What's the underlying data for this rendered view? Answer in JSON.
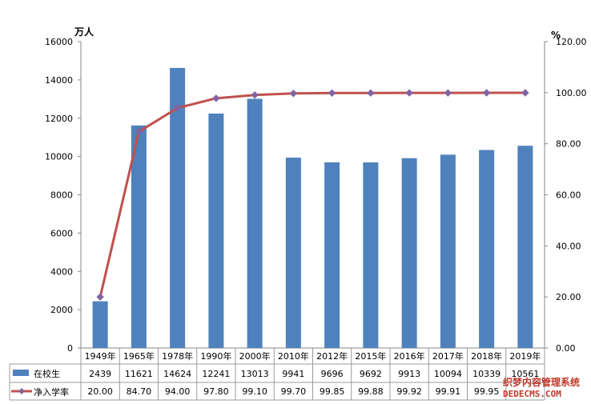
{
  "chart_data": {
    "type": "bar+line",
    "categories": [
      "1949年",
      "1965年",
      "1978年",
      "1990年",
      "2000年",
      "2010年",
      "2012年",
      "2015年",
      "2016年",
      "2017年",
      "2018年",
      "2019年"
    ],
    "series": [
      {
        "name": "在校生",
        "type": "bar",
        "axis": "left",
        "values": [
          2439,
          11621,
          14624,
          12241,
          13013,
          9941,
          9696,
          9692,
          9913,
          10094,
          10339,
          10561
        ],
        "table_text": [
          "2439",
          "11621",
          "14624",
          "12241",
          "13013",
          "9941",
          "9696",
          "9692",
          "9913",
          "10094",
          "10339",
          "10561"
        ],
        "color": "#4f81bd"
      },
      {
        "name": "净入学率",
        "type": "line",
        "axis": "right",
        "values": [
          20.0,
          84.7,
          94.0,
          97.8,
          99.1,
          99.7,
          99.85,
          99.88,
          99.92,
          99.91,
          99.95,
          99.95
        ],
        "table_text": [
          "20.00",
          "84.70",
          "94.00",
          "97.80",
          "99.10",
          "99.70",
          "99.85",
          "99.88",
          "99.92",
          "99.91",
          "99.95",
          ""
        ],
        "color": "#c0504d",
        "marker_color": "#8064a2"
      }
    ],
    "left_axis": {
      "unit": "万人",
      "range": [
        0,
        16000
      ],
      "ticks": [
        "0",
        "2000",
        "4000",
        "6000",
        "8000",
        "10000",
        "12000",
        "14000",
        "16000"
      ]
    },
    "right_axis": {
      "unit": "%",
      "range": [
        0,
        120
      ],
      "ticks": [
        "0.00",
        "20.00",
        "40.00",
        "60.00",
        "80.00",
        "100.00",
        "120.00"
      ]
    },
    "grid": false,
    "legend": "data-table"
  },
  "watermark": {
    "line1": "织梦内容管理系统",
    "line2": "DEDECMS.COM"
  }
}
